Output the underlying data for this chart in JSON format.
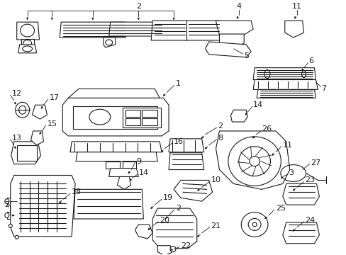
{
  "background_color": "#ffffff",
  "line_color": "#1a1a1a",
  "fig_width": 4.89,
  "fig_height": 3.6,
  "dpi": 100,
  "lw": 0.8
}
